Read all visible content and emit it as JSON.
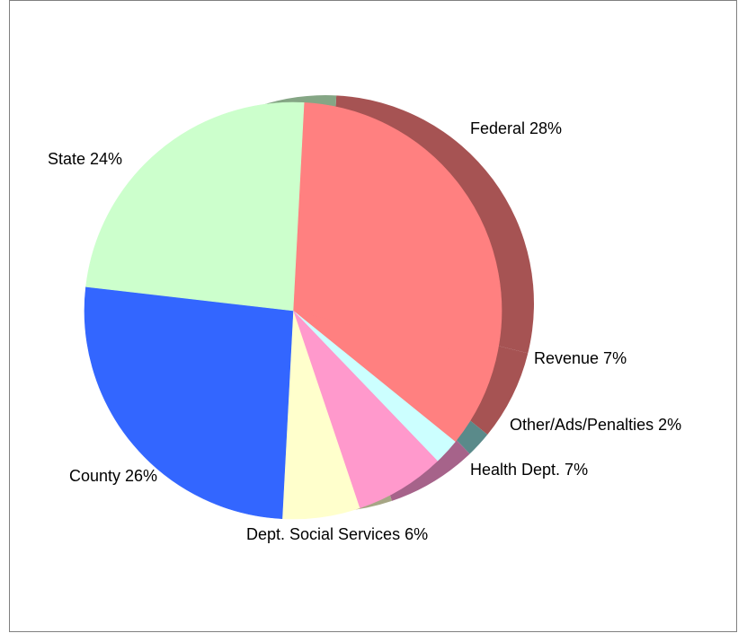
{
  "chart_data": {
    "type": "pie",
    "title": "",
    "legend": "none",
    "slices": [
      {
        "label": "Federal 28%",
        "name": "Federal",
        "value": 28,
        "color": "#ff8080",
        "side_color": "#a65353"
      },
      {
        "label": "Revenue 7%",
        "name": "Revenue",
        "value": 7,
        "color": "#ff8080",
        "side_color": "#a65353"
      },
      {
        "label": "Other/Ads/Penalties 2%",
        "name": "Other/Ads/Penalties",
        "value": 2,
        "color": "#ccffff",
        "side_color": "#5a8a8a"
      },
      {
        "label": "Health Dept. 7%",
        "name": "Health Dept.",
        "value": 7,
        "color": "#ff99cc",
        "side_color": "#a6638a"
      },
      {
        "label": "Dept. Social Services 6%",
        "name": "Dept. Social Services",
        "value": 6,
        "color": "#ffffcc",
        "side_color": "#a6a685"
      },
      {
        "label": "County 26%",
        "name": "County",
        "value": 26,
        "color": "#3366ff",
        "side_color": "#2242a6"
      },
      {
        "label": "State 24%",
        "name": "State",
        "value": 24,
        "color": "#ccffcc",
        "side_color": "#85a685"
      }
    ]
  }
}
